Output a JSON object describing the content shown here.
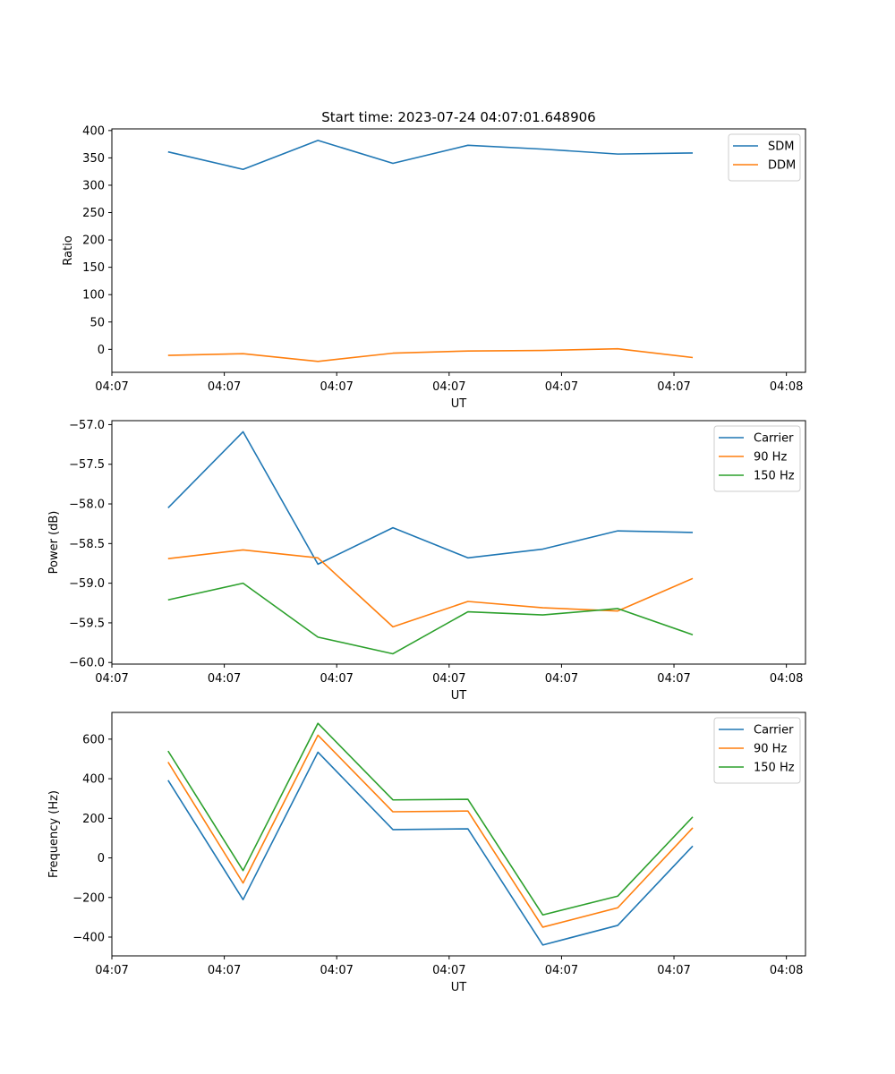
{
  "figure_title": "Start time: 2023-07-24 04:07:01.648906",
  "chart_data": [
    {
      "type": "line",
      "title": "Start time: 2023-07-24 04:07:01.648906",
      "xlabel": "UT",
      "ylabel": "Ratio",
      "xlim": [
        -0.5,
        5.67
      ],
      "ylim": [
        -42,
        403
      ],
      "x": [
        0,
        0.667,
        1.333,
        2,
        2.667,
        3.333,
        4,
        4.667
      ],
      "xticks": [
        -0.5,
        0.5,
        1.5,
        2.5,
        3.5,
        4.5,
        5.5
      ],
      "xtick_labels": [
        "04:07",
        "04:07",
        "04:07",
        "04:07",
        "04:07",
        "04:07",
        "04:08"
      ],
      "yticks": [
        0,
        50,
        100,
        150,
        200,
        250,
        300,
        350,
        400
      ],
      "ytick_labels": [
        "0",
        "50",
        "100",
        "150",
        "200",
        "250",
        "300",
        "350",
        "400"
      ],
      "legend": "top-right",
      "series": [
        {
          "name": "SDM",
          "color": "#1f77b4",
          "values": [
            361,
            329,
            382,
            340,
            373,
            366,
            357,
            359
          ]
        },
        {
          "name": "DDM",
          "color": "#ff7f0e",
          "values": [
            -11,
            -8,
            -22,
            -7,
            -3,
            -2,
            1,
            -15
          ]
        }
      ]
    },
    {
      "type": "line",
      "title": "",
      "xlabel": "UT",
      "ylabel": "Power (dB)",
      "xlim": [
        -0.5,
        5.67
      ],
      "ylim": [
        -60.02,
        -56.95
      ],
      "x": [
        0,
        0.667,
        1.333,
        2,
        2.667,
        3.333,
        4,
        4.667
      ],
      "xticks": [
        -0.5,
        0.5,
        1.5,
        2.5,
        3.5,
        4.5,
        5.5
      ],
      "xtick_labels": [
        "04:07",
        "04:07",
        "04:07",
        "04:07",
        "04:07",
        "04:07",
        "04:08"
      ],
      "yticks": [
        -60.0,
        -59.5,
        -59.0,
        -58.5,
        -58.0,
        -57.5,
        -57.0
      ],
      "ytick_labels": [
        "−60.0",
        "−59.5",
        "−59.0",
        "−58.5",
        "−58.0",
        "−57.5",
        "−57.0"
      ],
      "legend": "top-right",
      "series": [
        {
          "name": "Carrier",
          "color": "#1f77b4",
          "values": [
            -58.05,
            -57.09,
            -58.76,
            -58.3,
            -58.68,
            -58.57,
            -58.34,
            -58.36
          ]
        },
        {
          "name": "90 Hz",
          "color": "#ff7f0e",
          "values": [
            -58.69,
            -58.58,
            -58.68,
            -59.55,
            -59.23,
            -59.31,
            -59.35,
            -58.94
          ]
        },
        {
          "name": "150 Hz",
          "color": "#2ca02c",
          "values": [
            -59.21,
            -59.0,
            -59.68,
            -59.89,
            -59.36,
            -59.4,
            -59.32,
            -59.65
          ]
        }
      ]
    },
    {
      "type": "line",
      "title": "",
      "xlabel": "UT",
      "ylabel": "Frequency (Hz)",
      "xlim": [
        -0.5,
        5.67
      ],
      "ylim": [
        -495,
        735
      ],
      "x": [
        0,
        0.667,
        1.333,
        2,
        2.667,
        3.333,
        4,
        4.667
      ],
      "xticks": [
        -0.5,
        0.5,
        1.5,
        2.5,
        3.5,
        4.5,
        5.5
      ],
      "xtick_labels": [
        "04:07",
        "04:07",
        "04:07",
        "04:07",
        "04:07",
        "04:07",
        "04:08"
      ],
      "yticks": [
        -400,
        -200,
        0,
        200,
        400,
        600
      ],
      "ytick_labels": [
        "−400",
        "−200",
        "0",
        "200",
        "400",
        "600"
      ],
      "legend": "top-right",
      "series": [
        {
          "name": "Carrier",
          "color": "#1f77b4",
          "values": [
            392,
            -211,
            534,
            143,
            147,
            -440,
            -341,
            60
          ]
        },
        {
          "name": "90 Hz",
          "color": "#ff7f0e",
          "values": [
            484,
            -127,
            620,
            233,
            237,
            -350,
            -252,
            152
          ]
        },
        {
          "name": "150 Hz",
          "color": "#2ca02c",
          "values": [
            540,
            -64,
            680,
            293,
            296,
            -288,
            -193,
            207
          ]
        }
      ]
    }
  ]
}
